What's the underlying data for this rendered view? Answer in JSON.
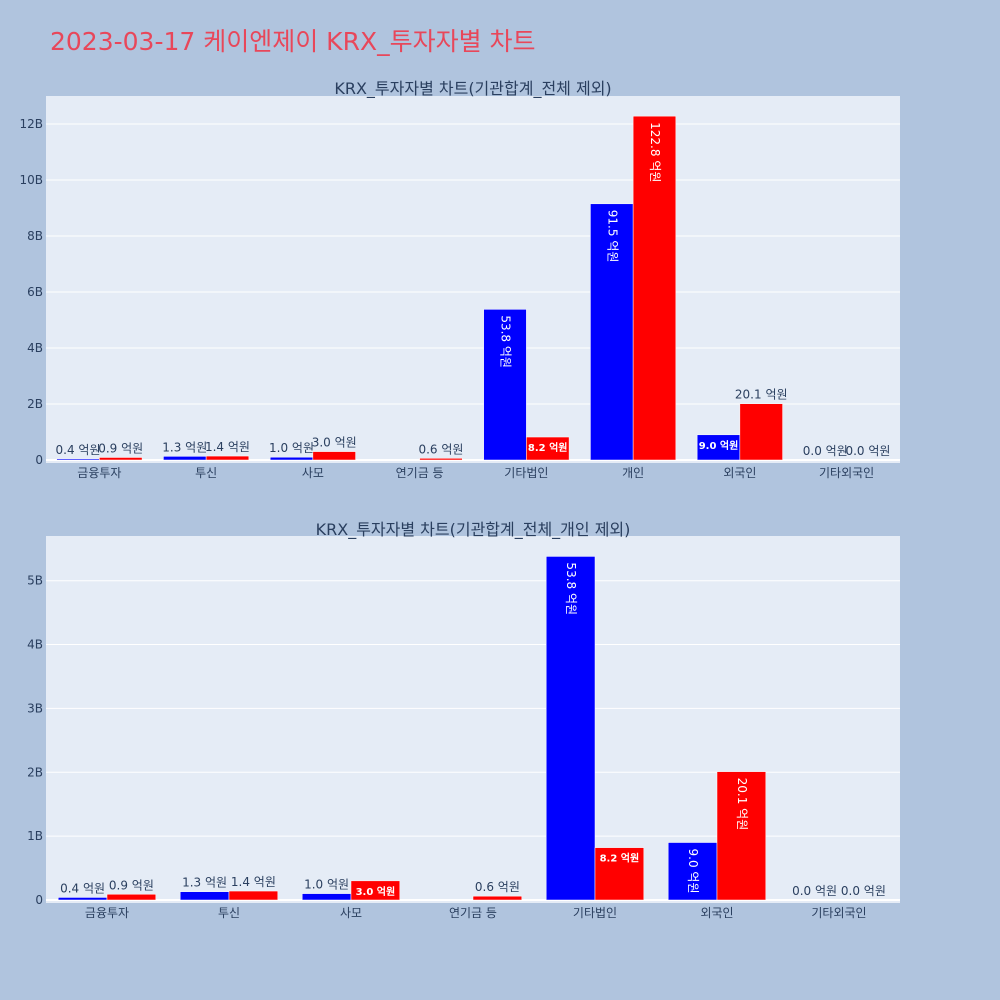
{
  "page": {
    "title": "2023-03-17 케이엔제이 KRX_투자자별 차트"
  },
  "chart_data": [
    {
      "type": "bar",
      "title": "KRX_투자자별 차트(기관합계_전체 제외)",
      "categories": [
        "금융투자",
        "투신",
        "사모",
        "연기금 등",
        "기타법인",
        "개인",
        "외국인",
        "기타외국인"
      ],
      "series": [
        {
          "color": "#0000ff",
          "values": [
            40000000,
            130000000,
            100000000,
            0,
            5380000000,
            9150000000,
            900000000,
            0
          ],
          "labels": [
            "0.4 억원",
            "1.3 억원",
            "1.0 억원",
            "",
            "53.8 억원",
            "91.5 억원",
            "9.0 억원",
            "0.0 억원"
          ]
        },
        {
          "color": "#ff0000",
          "values": [
            90000000,
            140000000,
            300000000,
            60000000,
            820000000,
            12280000000,
            2010000000,
            0
          ],
          "labels": [
            "0.9 억원",
            "1.4 억원",
            "3.0 억원",
            "0.6 억원",
            "8.2 억원",
            "122.8 억원",
            "20.1 억원",
            "0.0 억원"
          ]
        }
      ],
      "ylim": [
        0,
        13000000000
      ],
      "yticks": [
        0,
        2000000000,
        4000000000,
        6000000000,
        8000000000,
        10000000000,
        12000000000
      ],
      "ytick_labels": [
        "0",
        "2B",
        "4B",
        "6B",
        "8B",
        "10B",
        "12B"
      ],
      "grid": true,
      "legend": "none"
    },
    {
      "type": "bar",
      "title": "KRX_투자자별 차트(기관합계_전체_개인 제외)",
      "categories": [
        "금융투자",
        "투신",
        "사모",
        "연기금 등",
        "기타법인",
        "외국인",
        "기타외국인"
      ],
      "series": [
        {
          "color": "#0000ff",
          "values": [
            40000000,
            130000000,
            100000000,
            0,
            5380000000,
            900000000,
            0
          ],
          "labels": [
            "0.4 억원",
            "1.3 억원",
            "1.0 억원",
            "",
            "53.8 억원",
            "9.0 억원",
            "0.0 억원"
          ]
        },
        {
          "color": "#ff0000",
          "values": [
            90000000,
            140000000,
            300000000,
            60000000,
            820000000,
            2010000000,
            0
          ],
          "labels": [
            "0.9 억원",
            "1.4 억원",
            "3.0 억원",
            "0.6 억원",
            "8.2 억원",
            "20.1 억원",
            "0.0 억원"
          ]
        }
      ],
      "ylim": [
        0,
        5700000000
      ],
      "yticks": [
        0,
        1000000000,
        2000000000,
        3000000000,
        4000000000,
        5000000000
      ],
      "ytick_labels": [
        "0",
        "1B",
        "2B",
        "3B",
        "4B",
        "5B"
      ],
      "grid": true,
      "legend": "none"
    }
  ]
}
